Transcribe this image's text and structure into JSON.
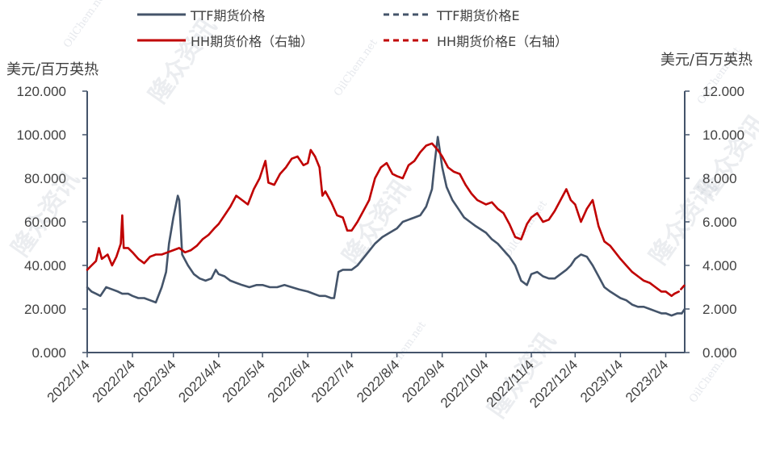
{
  "chart_data": {
    "type": "line",
    "ylabel_left": "美元/百万英热",
    "ylabel_right": "美元/百万英热",
    "ylim_left": [
      0,
      120
    ],
    "ylim_right": [
      0,
      12
    ],
    "yticks_left": [
      "0.000",
      "20.000",
      "40.000",
      "60.000",
      "80.000",
      "100.000",
      "120.000"
    ],
    "yticks_right": [
      "0.000",
      "2.000",
      "4.000",
      "6.000",
      "8.000",
      "10.000",
      "12.000"
    ],
    "xlim": [
      "2022-01-04",
      "2023-02-17"
    ],
    "xticks": [
      {
        "date": "2022-01-04",
        "label": "2022/1/4"
      },
      {
        "date": "2022-02-04",
        "label": "2022/2/4"
      },
      {
        "date": "2022-03-04",
        "label": "2022/3/4"
      },
      {
        "date": "2022-04-04",
        "label": "2022/4/4"
      },
      {
        "date": "2022-05-04",
        "label": "2022/5/4"
      },
      {
        "date": "2022-06-04",
        "label": "2022/6/4"
      },
      {
        "date": "2022-07-04",
        "label": "2022/7/4"
      },
      {
        "date": "2022-08-04",
        "label": "2022/8/4"
      },
      {
        "date": "2022-09-04",
        "label": "2022/9/4"
      },
      {
        "date": "2022-10-04",
        "label": "2022/10/4"
      },
      {
        "date": "2022-11-04",
        "label": "2022/11/4"
      },
      {
        "date": "2022-12-04",
        "label": "2022/12/4"
      },
      {
        "date": "2023-01-04",
        "label": "2023/1/4"
      },
      {
        "date": "2023-02-04",
        "label": "2023/2/4"
      }
    ],
    "grid": false,
    "legend_position": "top",
    "series": [
      {
        "name": "TTF期货价格",
        "axis": "left",
        "color": "#44546a",
        "style": "solid",
        "points": [
          [
            "2022-01-04",
            30
          ],
          [
            "2022-01-07",
            28
          ],
          [
            "2022-01-10",
            27
          ],
          [
            "2022-01-13",
            26
          ],
          [
            "2022-01-17",
            30
          ],
          [
            "2022-01-21",
            29
          ],
          [
            "2022-01-25",
            28
          ],
          [
            "2022-01-28",
            27
          ],
          [
            "2022-02-01",
            27
          ],
          [
            "2022-02-04",
            26
          ],
          [
            "2022-02-08",
            25
          ],
          [
            "2022-02-12",
            25
          ],
          [
            "2022-02-16",
            24
          ],
          [
            "2022-02-20",
            23
          ],
          [
            "2022-02-24",
            30
          ],
          [
            "2022-02-27",
            37
          ],
          [
            "2022-03-01",
            50
          ],
          [
            "2022-03-04",
            62
          ],
          [
            "2022-03-07",
            72
          ],
          [
            "2022-03-08",
            70
          ],
          [
            "2022-03-10",
            45
          ],
          [
            "2022-03-14",
            40
          ],
          [
            "2022-03-18",
            36
          ],
          [
            "2022-03-22",
            34
          ],
          [
            "2022-03-26",
            33
          ],
          [
            "2022-03-30",
            34
          ],
          [
            "2022-04-02",
            38
          ],
          [
            "2022-04-04",
            36
          ],
          [
            "2022-04-08",
            35
          ],
          [
            "2022-04-12",
            33
          ],
          [
            "2022-04-16",
            32
          ],
          [
            "2022-04-20",
            31
          ],
          [
            "2022-04-25",
            30
          ],
          [
            "2022-04-30",
            31
          ],
          [
            "2022-05-04",
            31
          ],
          [
            "2022-05-09",
            30
          ],
          [
            "2022-05-14",
            30
          ],
          [
            "2022-05-19",
            31
          ],
          [
            "2022-05-24",
            30
          ],
          [
            "2022-05-29",
            29
          ],
          [
            "2022-06-04",
            28
          ],
          [
            "2022-06-08",
            27
          ],
          [
            "2022-06-12",
            26
          ],
          [
            "2022-06-16",
            26
          ],
          [
            "2022-06-20",
            25
          ],
          [
            "2022-06-22",
            25
          ],
          [
            "2022-06-25",
            37
          ],
          [
            "2022-06-28",
            38
          ],
          [
            "2022-07-04",
            38
          ],
          [
            "2022-07-08",
            40
          ],
          [
            "2022-07-14",
            45
          ],
          [
            "2022-07-20",
            50
          ],
          [
            "2022-07-25",
            53
          ],
          [
            "2022-07-30",
            55
          ],
          [
            "2022-08-04",
            57
          ],
          [
            "2022-08-08",
            60
          ],
          [
            "2022-08-12",
            61
          ],
          [
            "2022-08-16",
            62
          ],
          [
            "2022-08-20",
            63
          ],
          [
            "2022-08-24",
            67
          ],
          [
            "2022-08-28",
            75
          ],
          [
            "2022-08-30",
            88
          ],
          [
            "2022-09-01",
            99
          ],
          [
            "2022-09-03",
            90
          ],
          [
            "2022-09-04",
            85
          ],
          [
            "2022-09-07",
            76
          ],
          [
            "2022-09-11",
            70
          ],
          [
            "2022-09-15",
            66
          ],
          [
            "2022-09-19",
            62
          ],
          [
            "2022-09-23",
            60
          ],
          [
            "2022-09-27",
            58
          ],
          [
            "2022-10-04",
            55
          ],
          [
            "2022-10-08",
            52
          ],
          [
            "2022-10-12",
            50
          ],
          [
            "2022-10-16",
            47
          ],
          [
            "2022-10-20",
            44
          ],
          [
            "2022-10-24",
            40
          ],
          [
            "2022-10-28",
            33
          ],
          [
            "2022-11-01",
            31
          ],
          [
            "2022-11-04",
            36
          ],
          [
            "2022-11-08",
            37
          ],
          [
            "2022-11-12",
            35
          ],
          [
            "2022-11-16",
            34
          ],
          [
            "2022-11-20",
            34
          ],
          [
            "2022-11-24",
            36
          ],
          [
            "2022-11-28",
            38
          ],
          [
            "2022-12-01",
            40
          ],
          [
            "2022-12-04",
            43
          ],
          [
            "2022-12-08",
            45
          ],
          [
            "2022-12-12",
            44
          ],
          [
            "2022-12-16",
            40
          ],
          [
            "2022-12-20",
            35
          ],
          [
            "2022-12-24",
            30
          ],
          [
            "2022-12-28",
            28
          ],
          [
            "2023-01-04",
            25
          ],
          [
            "2023-01-08",
            24
          ],
          [
            "2023-01-12",
            22
          ],
          [
            "2023-01-16",
            21
          ],
          [
            "2023-01-20",
            21
          ],
          [
            "2023-01-24",
            20
          ],
          [
            "2023-01-28",
            19
          ],
          [
            "2023-02-01",
            18
          ],
          [
            "2023-02-04",
            18
          ],
          [
            "2023-02-08",
            17
          ],
          [
            "2023-02-12",
            18
          ],
          [
            "2023-02-15",
            18
          ]
        ]
      },
      {
        "name": "TTF期货价格E",
        "axis": "left",
        "color": "#44546a",
        "style": "dashed",
        "points": [
          [
            "2023-02-15",
            18
          ],
          [
            "2023-02-16",
            19
          ],
          [
            "2023-02-17",
            20
          ]
        ]
      },
      {
        "name": "HH期货价格（右轴）",
        "axis": "right",
        "color": "#c00000",
        "style": "solid",
        "points": [
          [
            "2022-01-04",
            3.8
          ],
          [
            "2022-01-07",
            4.0
          ],
          [
            "2022-01-10",
            4.2
          ],
          [
            "2022-01-12",
            4.8
          ],
          [
            "2022-01-14",
            4.3
          ],
          [
            "2022-01-18",
            4.5
          ],
          [
            "2022-01-21",
            4.0
          ],
          [
            "2022-01-24",
            4.4
          ],
          [
            "2022-01-27",
            5.0
          ],
          [
            "2022-01-28",
            6.3
          ],
          [
            "2022-01-29",
            4.8
          ],
          [
            "2022-02-01",
            4.8
          ],
          [
            "2022-02-04",
            4.6
          ],
          [
            "2022-02-08",
            4.3
          ],
          [
            "2022-02-12",
            4.1
          ],
          [
            "2022-02-16",
            4.4
          ],
          [
            "2022-02-20",
            4.5
          ],
          [
            "2022-02-24",
            4.5
          ],
          [
            "2022-02-28",
            4.6
          ],
          [
            "2022-03-04",
            4.7
          ],
          [
            "2022-03-08",
            4.8
          ],
          [
            "2022-03-12",
            4.6
          ],
          [
            "2022-03-16",
            4.7
          ],
          [
            "2022-03-20",
            4.9
          ],
          [
            "2022-03-24",
            5.2
          ],
          [
            "2022-03-28",
            5.4
          ],
          [
            "2022-04-01",
            5.7
          ],
          [
            "2022-04-04",
            5.9
          ],
          [
            "2022-04-08",
            6.3
          ],
          [
            "2022-04-12",
            6.7
          ],
          [
            "2022-04-16",
            7.2
          ],
          [
            "2022-04-20",
            7.0
          ],
          [
            "2022-04-24",
            6.8
          ],
          [
            "2022-04-28",
            7.5
          ],
          [
            "2022-05-02",
            8.0
          ],
          [
            "2022-05-06",
            8.8
          ],
          [
            "2022-05-08",
            7.8
          ],
          [
            "2022-05-12",
            7.7
          ],
          [
            "2022-05-16",
            8.2
          ],
          [
            "2022-05-20",
            8.5
          ],
          [
            "2022-05-24",
            8.9
          ],
          [
            "2022-05-28",
            9.0
          ],
          [
            "2022-06-01",
            8.6
          ],
          [
            "2022-06-04",
            8.7
          ],
          [
            "2022-06-06",
            9.3
          ],
          [
            "2022-06-09",
            9.0
          ],
          [
            "2022-06-12",
            8.5
          ],
          [
            "2022-06-14",
            7.2
          ],
          [
            "2022-06-16",
            7.4
          ],
          [
            "2022-06-20",
            6.9
          ],
          [
            "2022-06-24",
            6.3
          ],
          [
            "2022-06-28",
            6.2
          ],
          [
            "2022-07-01",
            5.6
          ],
          [
            "2022-07-04",
            5.6
          ],
          [
            "2022-07-08",
            6.0
          ],
          [
            "2022-07-12",
            6.5
          ],
          [
            "2022-07-16",
            7.0
          ],
          [
            "2022-07-20",
            8.0
          ],
          [
            "2022-07-24",
            8.5
          ],
          [
            "2022-07-28",
            8.7
          ],
          [
            "2022-08-01",
            8.2
          ],
          [
            "2022-08-04",
            8.1
          ],
          [
            "2022-08-08",
            8.0
          ],
          [
            "2022-08-12",
            8.6
          ],
          [
            "2022-08-16",
            8.8
          ],
          [
            "2022-08-20",
            9.2
          ],
          [
            "2022-08-24",
            9.5
          ],
          [
            "2022-08-28",
            9.6
          ],
          [
            "2022-09-01",
            9.3
          ],
          [
            "2022-09-04",
            9.0
          ],
          [
            "2022-09-08",
            8.5
          ],
          [
            "2022-09-12",
            8.3
          ],
          [
            "2022-09-16",
            8.2
          ],
          [
            "2022-09-20",
            7.7
          ],
          [
            "2022-09-24",
            7.3
          ],
          [
            "2022-09-28",
            7.0
          ],
          [
            "2022-10-04",
            6.8
          ],
          [
            "2022-10-08",
            6.9
          ],
          [
            "2022-10-12",
            6.6
          ],
          [
            "2022-10-16",
            6.4
          ],
          [
            "2022-10-20",
            5.9
          ],
          [
            "2022-10-24",
            5.3
          ],
          [
            "2022-10-28",
            5.2
          ],
          [
            "2022-11-01",
            5.9
          ],
          [
            "2022-11-04",
            6.2
          ],
          [
            "2022-11-08",
            6.4
          ],
          [
            "2022-11-12",
            6.0
          ],
          [
            "2022-11-16",
            6.1
          ],
          [
            "2022-11-20",
            6.5
          ],
          [
            "2022-11-24",
            7.0
          ],
          [
            "2022-11-28",
            7.5
          ],
          [
            "2022-12-01",
            7.0
          ],
          [
            "2022-12-04",
            6.8
          ],
          [
            "2022-12-08",
            6.0
          ],
          [
            "2022-12-12",
            6.6
          ],
          [
            "2022-12-16",
            7.0
          ],
          [
            "2022-12-20",
            5.8
          ],
          [
            "2022-12-24",
            5.1
          ],
          [
            "2022-12-28",
            4.9
          ],
          [
            "2023-01-04",
            4.3
          ],
          [
            "2023-01-08",
            4.0
          ],
          [
            "2023-01-12",
            3.7
          ],
          [
            "2023-01-16",
            3.5
          ],
          [
            "2023-01-20",
            3.3
          ],
          [
            "2023-01-24",
            3.2
          ],
          [
            "2023-01-28",
            3.0
          ],
          [
            "2023-02-01",
            2.8
          ],
          [
            "2023-02-04",
            2.8
          ],
          [
            "2023-02-08",
            2.6
          ],
          [
            "2023-02-10",
            2.7
          ]
        ]
      },
      {
        "name": "HH期货价格E（右轴）",
        "axis": "right",
        "color": "#c00000",
        "style": "dashed",
        "points": [
          [
            "2023-02-10",
            2.7
          ],
          [
            "2023-02-13",
            2.8
          ],
          [
            "2023-02-17",
            3.1
          ]
        ]
      }
    ]
  },
  "watermark": {
    "brand": "隆众资讯",
    "site": "OilChem.net"
  }
}
